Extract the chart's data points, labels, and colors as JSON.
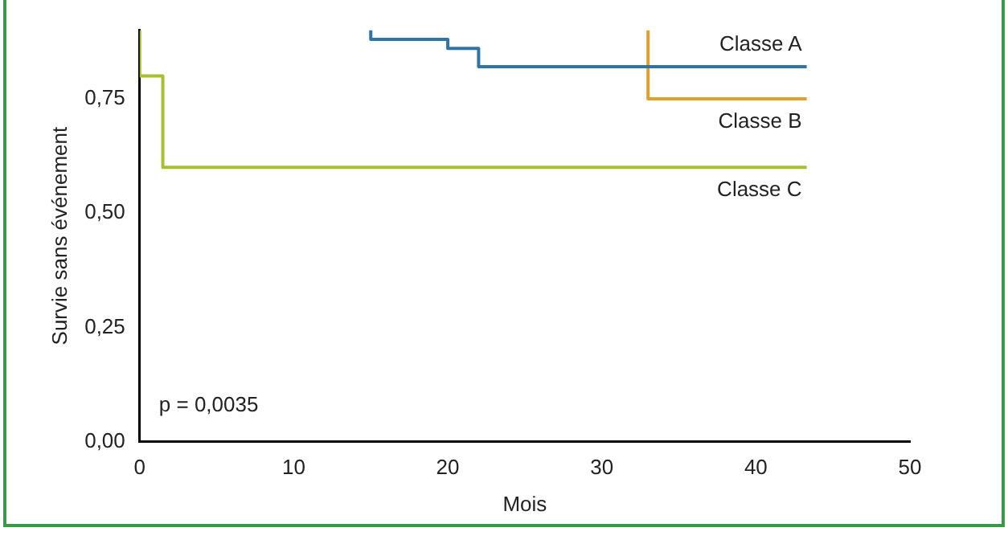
{
  "chart_data": {
    "type": "step",
    "xlabel": "Mois",
    "ylabel": "Survie sans événement",
    "xlim": [
      0,
      50
    ],
    "xticks": [
      0,
      10,
      20,
      30,
      40,
      50
    ],
    "ylim": [
      0,
      0.9
    ],
    "yticks": [
      {
        "value": 0,
        "label": "0,00"
      },
      {
        "value": 0.25,
        "label": "0,25"
      },
      {
        "value": 0.5,
        "label": "0,50"
      },
      {
        "value": 0.75,
        "label": "0,75"
      }
    ],
    "grid": false,
    "legend": false,
    "marker": "none",
    "line_style": "solid",
    "annotations": [
      "p = 0,0035"
    ],
    "series": [
      {
        "name": "Classe A",
        "color": "#2e75a6",
        "x": [
          15,
          20,
          22,
          30,
          43.3
        ],
        "values": [
          0.9,
          0.88,
          0.86,
          0.82,
          0.82
        ]
      },
      {
        "name": "Classe B",
        "color": "#e0a030",
        "x": [
          33,
          33,
          43.3
        ],
        "values": [
          0.9,
          0.75,
          0.75
        ]
      },
      {
        "name": "Classe C",
        "color": "#a8c030",
        "x": [
          0,
          1.5,
          2.8,
          43.3
        ],
        "values": [
          0.9,
          0.8,
          0.6,
          0.6
        ]
      }
    ]
  }
}
